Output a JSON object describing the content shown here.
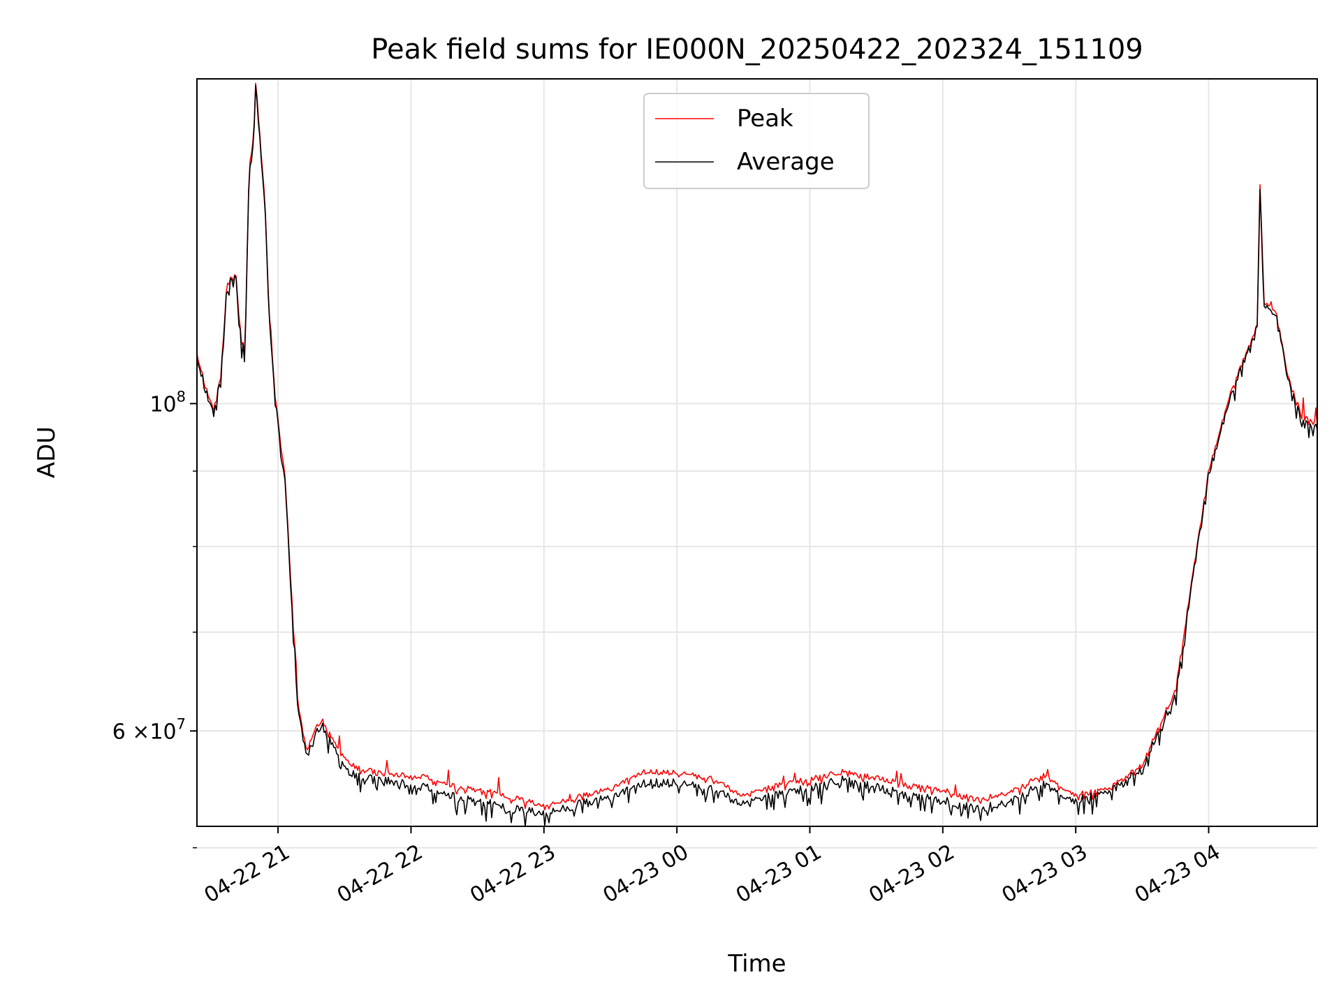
{
  "chart_data": {
    "type": "line",
    "title": "Peak field sums for IE000N_20250422_202324_151109",
    "xlabel": "Time",
    "ylabel": "ADU",
    "yscale": "log",
    "ylim": [
      51700000,
      166000000
    ],
    "xlim": [
      "2025-04-22 20:23:24",
      "2025-04-23 04:49:00"
    ],
    "grid": true,
    "legend_position": "upper center",
    "x_ticks": [
      {
        "time": "2025-04-22 21:00",
        "label": "04-22 21"
      },
      {
        "time": "2025-04-22 22:00",
        "label": "04-22 22"
      },
      {
        "time": "2025-04-22 23:00",
        "label": "04-22 23"
      },
      {
        "time": "2025-04-23 00:00",
        "label": "04-23 00"
      },
      {
        "time": "2025-04-23 01:00",
        "label": "04-23 01"
      },
      {
        "time": "2025-04-23 02:00",
        "label": "04-23 02"
      },
      {
        "time": "2025-04-23 03:00",
        "label": "04-23 03"
      },
      {
        "time": "2025-04-23 04:00",
        "label": "04-23 04"
      }
    ],
    "y_major_ticks": [
      {
        "value": 60000000,
        "mantissa": "6",
        "label_mid": "×10",
        "exponent": "7"
      },
      {
        "value": 100000000,
        "mantissa": "",
        "label_mid": "10",
        "exponent": "8"
      }
    ],
    "y_minor_ticks": [
      50000000,
      60000000,
      70000000,
      80000000,
      90000000
    ],
    "series": [
      {
        "name": "Peak",
        "color": "#ff0000",
        "points": [
          [
            "2025-04-22 20:23:24",
            108000000
          ],
          [
            "2025-04-22 20:27",
            103000000
          ],
          [
            "2025-04-22 20:31",
            99000000
          ],
          [
            "2025-04-22 20:34",
            104000000
          ],
          [
            "2025-04-22 20:37",
            121000000
          ],
          [
            "2025-04-22 20:41",
            122000000
          ],
          [
            "2025-04-22 20:43",
            112000000
          ],
          [
            "2025-04-22 20:45",
            108000000
          ],
          [
            "2025-04-22 20:47",
            145000000
          ],
          [
            "2025-04-22 20:49",
            152000000
          ],
          [
            "2025-04-22 20:50",
            166000000
          ],
          [
            "2025-04-22 20:52",
            150000000
          ],
          [
            "2025-04-22 20:54",
            138000000
          ],
          [
            "2025-04-22 20:56",
            115000000
          ],
          [
            "2025-04-22 20:59",
            100000000
          ],
          [
            "2025-04-22 21:03",
            90000000
          ],
          [
            "2025-04-22 21:06",
            75000000
          ],
          [
            "2025-04-22 21:09",
            62500000
          ],
          [
            "2025-04-22 21:13",
            58000000
          ],
          [
            "2025-04-22 21:16",
            60000000
          ],
          [
            "2025-04-22 21:20",
            61000000
          ],
          [
            "2025-04-22 21:26",
            58600000
          ],
          [
            "2025-04-22 21:35",
            56600000
          ],
          [
            "2025-04-22 21:50",
            56100000
          ],
          [
            "2025-04-22 22:05",
            55900000
          ],
          [
            "2025-04-22 22:20",
            55000000
          ],
          [
            "2025-04-22 22:35",
            54600000
          ],
          [
            "2025-04-22 22:50",
            53900000
          ],
          [
            "2025-04-22 23:00",
            53400000
          ],
          [
            "2025-04-22 23:15",
            54100000
          ],
          [
            "2025-04-22 23:30",
            54800000
          ],
          [
            "2025-04-22 23:45",
            56300000
          ],
          [
            "2025-04-23 00:00",
            56200000
          ],
          [
            "2025-04-23 00:15",
            55800000
          ],
          [
            "2025-04-23 00:30",
            54200000
          ],
          [
            "2025-04-23 00:45",
            55100000
          ],
          [
            "2025-04-23 01:00",
            55700000
          ],
          [
            "2025-04-23 01:15",
            56300000
          ],
          [
            "2025-04-23 01:30",
            55800000
          ],
          [
            "2025-04-23 01:45",
            55100000
          ],
          [
            "2025-04-23 02:00",
            54700000
          ],
          [
            "2025-04-23 02:15",
            53900000
          ],
          [
            "2025-04-23 02:30",
            54500000
          ],
          [
            "2025-04-23 02:45",
            56000000
          ],
          [
            "2025-04-23 03:00",
            54300000
          ],
          [
            "2025-04-23 03:15",
            54800000
          ],
          [
            "2025-04-23 03:30",
            56900000
          ],
          [
            "2025-04-23 03:45",
            64000000
          ],
          [
            "2025-04-23 04:00",
            90000000
          ],
          [
            "2025-04-23 04:10",
            102000000
          ],
          [
            "2025-04-23 04:18",
            109000000
          ],
          [
            "2025-04-23 04:22",
            113000000
          ],
          [
            "2025-04-23 04:23",
            143000000
          ],
          [
            "2025-04-23 04:25",
            117000000
          ],
          [
            "2025-04-23 04:30",
            116000000
          ],
          [
            "2025-04-23 04:36",
            104000000
          ],
          [
            "2025-04-23 04:42",
            98000000
          ],
          [
            "2025-04-23 04:49",
            97000000
          ]
        ]
      },
      {
        "name": "Average",
        "color": "#000000",
        "points": [
          [
            "2025-04-22 20:23:24",
            107500000
          ],
          [
            "2025-04-22 20:27",
            102500000
          ],
          [
            "2025-04-22 20:31",
            98500000
          ],
          [
            "2025-04-22 20:34",
            103500000
          ],
          [
            "2025-04-22 20:37",
            120500000
          ],
          [
            "2025-04-22 20:41",
            121500000
          ],
          [
            "2025-04-22 20:43",
            111500000
          ],
          [
            "2025-04-22 20:45",
            107500000
          ],
          [
            "2025-04-22 20:47",
            144000000
          ],
          [
            "2025-04-22 20:49",
            151000000
          ],
          [
            "2025-04-22 20:50",
            165000000
          ],
          [
            "2025-04-22 20:52",
            149000000
          ],
          [
            "2025-04-22 20:54",
            137000000
          ],
          [
            "2025-04-22 20:56",
            114500000
          ],
          [
            "2025-04-22 20:59",
            99500000
          ],
          [
            "2025-04-22 21:03",
            89500000
          ],
          [
            "2025-04-22 21:06",
            74500000
          ],
          [
            "2025-04-22 21:09",
            62000000
          ],
          [
            "2025-04-22 21:13",
            57500000
          ],
          [
            "2025-04-22 21:16",
            59500000
          ],
          [
            "2025-04-22 21:20",
            60500000
          ],
          [
            "2025-04-22 21:26",
            58000000
          ],
          [
            "2025-04-22 21:35",
            55800000
          ],
          [
            "2025-04-22 21:50",
            55500000
          ],
          [
            "2025-04-22 22:05",
            55000000
          ],
          [
            "2025-04-22 22:20",
            54100000
          ],
          [
            "2025-04-22 22:35",
            53600000
          ],
          [
            "2025-04-22 22:50",
            53000000
          ],
          [
            "2025-04-22 23:00",
            52800000
          ],
          [
            "2025-04-22 23:15",
            53500000
          ],
          [
            "2025-04-22 23:30",
            54000000
          ],
          [
            "2025-04-22 23:45",
            55300000
          ],
          [
            "2025-04-23 00:00",
            55300000
          ],
          [
            "2025-04-23 00:15",
            54900000
          ],
          [
            "2025-04-23 00:30",
            53500000
          ],
          [
            "2025-04-23 00:45",
            54300000
          ],
          [
            "2025-04-23 01:00",
            54900000
          ],
          [
            "2025-04-23 01:15",
            55600000
          ],
          [
            "2025-04-23 01:30",
            55000000
          ],
          [
            "2025-04-23 01:45",
            54200000
          ],
          [
            "2025-04-23 02:00",
            53800000
          ],
          [
            "2025-04-23 02:15",
            53100000
          ],
          [
            "2025-04-23 02:30",
            53700000
          ],
          [
            "2025-04-23 02:45",
            55200000
          ],
          [
            "2025-04-23 03:00",
            53800000
          ],
          [
            "2025-04-23 03:15",
            54500000
          ],
          [
            "2025-04-23 03:30",
            56500000
          ],
          [
            "2025-04-23 03:45",
            63500000
          ],
          [
            "2025-04-23 04:00",
            89500000
          ],
          [
            "2025-04-23 04:10",
            101500000
          ],
          [
            "2025-04-23 04:18",
            108500000
          ],
          [
            "2025-04-23 04:22",
            112500000
          ],
          [
            "2025-04-23 04:23",
            142000000
          ],
          [
            "2025-04-23 04:25",
            116500000
          ],
          [
            "2025-04-23 04:30",
            115500000
          ],
          [
            "2025-04-23 04:36",
            103500000
          ],
          [
            "2025-04-23 04:42",
            97000000
          ],
          [
            "2025-04-23 04:49",
            96500000
          ]
        ]
      }
    ]
  }
}
